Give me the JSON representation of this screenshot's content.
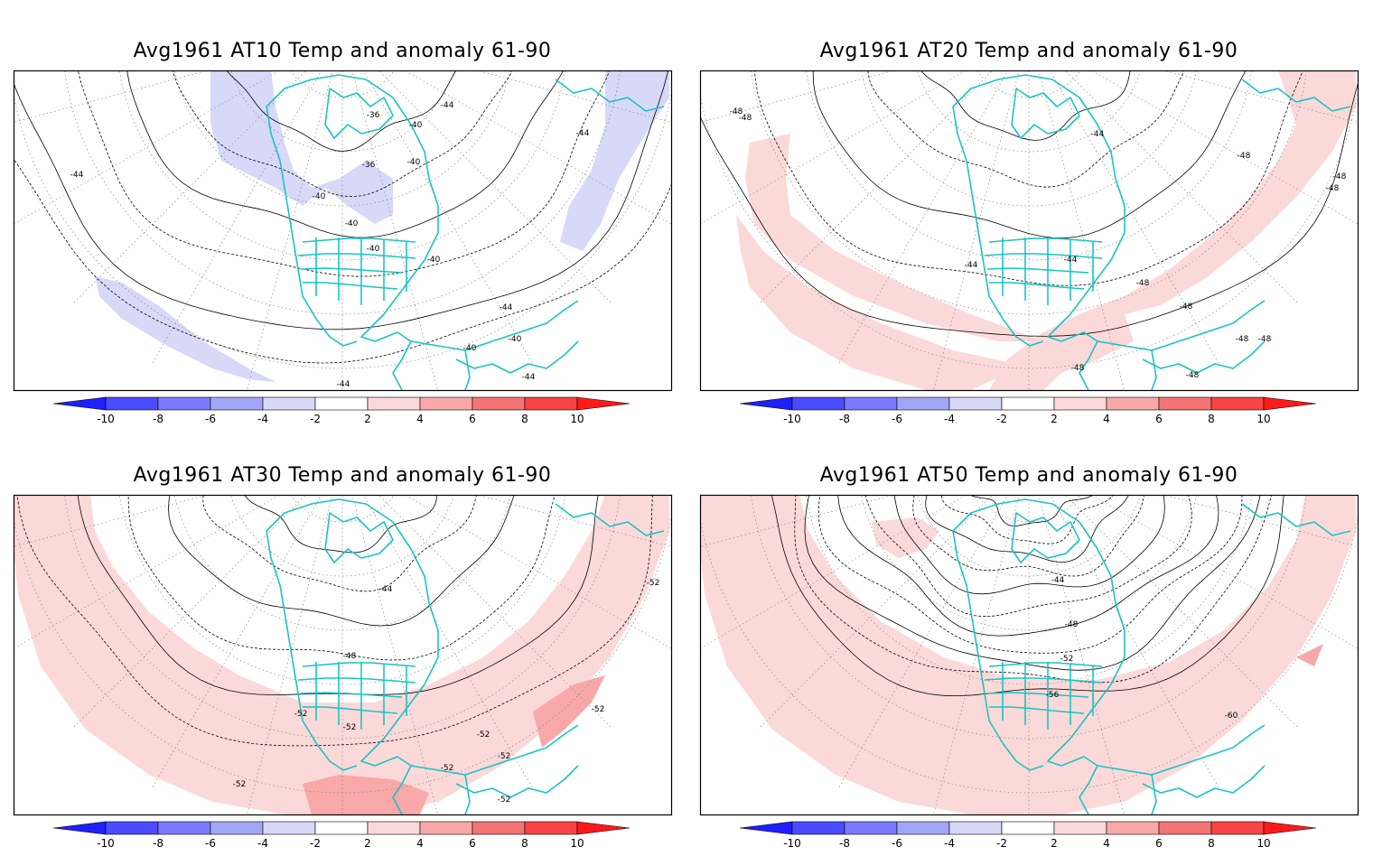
{
  "panels": [
    {
      "title": "Avg1961 AT10 Temp and anomaly 61-90",
      "contour_labels": [
        "-36",
        "-36",
        "-40",
        "-40",
        "-40",
        "-40",
        "-40",
        "-40",
        "-40",
        "-40",
        "-44",
        "-44",
        "-44",
        "-44",
        "-44",
        "-44"
      ],
      "anomaly_sign": "negative"
    },
    {
      "title": "Avg1961 AT20 Temp and anomaly 61-90",
      "contour_labels": [
        "-48",
        "-48",
        "-48",
        "-48",
        "-48",
        "-48",
        "-48",
        "-48",
        "-48",
        "-44",
        "-44",
        "-44",
        "-48",
        "-48"
      ],
      "anomaly_sign": "positive"
    },
    {
      "title": "Avg1961 AT30 Temp and anomaly 61-90",
      "contour_labels": [
        "-44",
        "-48",
        "-52",
        "-52",
        "-52",
        "-52",
        "-52",
        "-52",
        "-52",
        "-52",
        "-52"
      ],
      "anomaly_sign": "positive"
    },
    {
      "title": "Avg1961 AT50 Temp and anomaly 61-90",
      "contour_labels": [
        "-44",
        "-48",
        "-52",
        "-56",
        "-60"
      ],
      "anomaly_sign": "positive"
    }
  ],
  "colorbar": {
    "tick_labels": [
      "-10",
      "-8",
      "-6",
      "-4",
      "-2",
      "2",
      "4",
      "6",
      "8",
      "10"
    ],
    "colors": [
      "#1f1fff",
      "#4b4bff",
      "#7a7aff",
      "#a5a5f5",
      "#d8d8f8",
      "#ffffff",
      "#fcd9d9",
      "#f8a8a8",
      "#f47474",
      "#f84444",
      "#ff1a1a"
    ]
  },
  "colors": {
    "coast": "#19c4c4",
    "negative_anomaly": "#d8d8f8",
    "positive_anomaly": "#fcd9d9",
    "strong_positive_anomaly": "#f8a8a8",
    "contour": "#000000"
  }
}
